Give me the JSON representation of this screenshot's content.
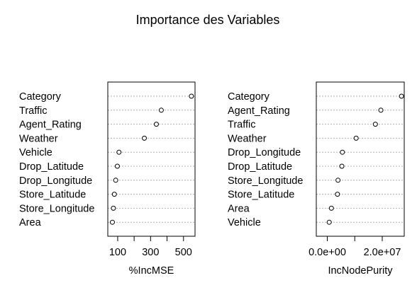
{
  "title": "Importance des Variables",
  "chart_data": [
    {
      "type": "scatter",
      "xlabel": "%IncMSE",
      "categories": [
        "Category",
        "Traffic",
        "Agent_Rating",
        "Weather",
        "Vehicle",
        "Drop_Latitude",
        "Drop_Longitude",
        "Store_Latitude",
        "Store_Longitude",
        "Area"
      ],
      "values": [
        548,
        365,
        335,
        262,
        108,
        98,
        88,
        80,
        74,
        68
      ],
      "xticks": [
        100,
        300,
        500
      ],
      "xtick_labels": [
        "100",
        "300",
        "500"
      ],
      "xlim": [
        40,
        570
      ],
      "grid": true
    },
    {
      "type": "scatter",
      "xlabel": "IncNodePurity",
      "categories": [
        "Category",
        "Agent_Rating",
        "Traffic",
        "Weather",
        "Drop_Longitude",
        "Drop_Latitude",
        "Store_Longitude",
        "Store_Latitude",
        "Area",
        "Vehicle"
      ],
      "values": [
        27000000,
        19500000,
        17500000,
        10500000,
        5500000,
        5300000,
        3900000,
        3700000,
        1500000,
        700000
      ],
      "xticks": [
        0,
        20000000
      ],
      "xtick_labels": [
        "0.0e+00",
        "2.0e+07"
      ],
      "xlim": [
        -4000000,
        28000000
      ],
      "grid": true
    }
  ]
}
